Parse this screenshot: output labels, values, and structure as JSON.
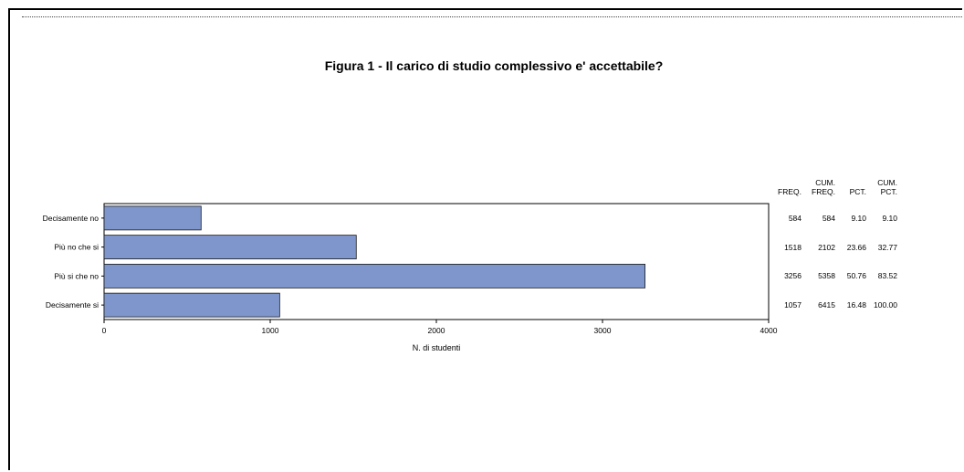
{
  "chart_data": {
    "type": "bar",
    "orientation": "horizontal",
    "title": "Figura 1 - Il carico di studio complessivo e' accettabile?",
    "xlabel": "N. di studenti",
    "xlim": [
      0,
      4000
    ],
    "xticks": [
      0,
      1000,
      2000,
      3000,
      4000
    ],
    "categories": [
      "Decisamente no",
      "Più no che si",
      "Più si che no",
      "Decisamente si"
    ],
    "values": [
      584,
      1518,
      3256,
      1057
    ],
    "bar_color": "#7f96cc",
    "grid": false,
    "table": {
      "headers": [
        [
          "",
          "FREQ."
        ],
        [
          "CUM.",
          "FREQ."
        ],
        [
          "",
          "PCT."
        ],
        [
          "CUM.",
          "PCT."
        ]
      ],
      "rows": [
        [
          "584",
          "584",
          "9.10",
          "9.10"
        ],
        [
          "1518",
          "2102",
          "23.66",
          "32.77"
        ],
        [
          "3256",
          "5358",
          "50.76",
          "83.52"
        ],
        [
          "1057",
          "6415",
          "16.48",
          "100.00"
        ]
      ]
    }
  }
}
